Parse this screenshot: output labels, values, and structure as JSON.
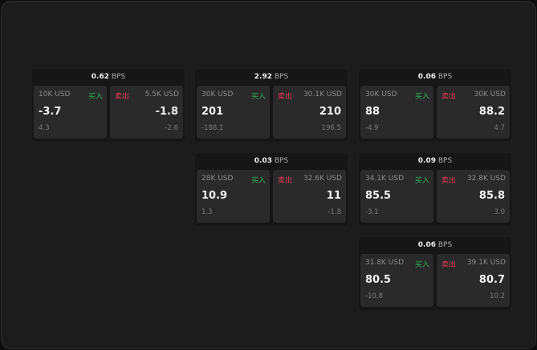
{
  "unit": "BPS",
  "buy_label": "买入",
  "sell_label": "卖出",
  "colors": {
    "buy": "#2fae5b",
    "sell": "#e0395a",
    "background": "#1c1c1c",
    "panel": "#2a2a2a"
  },
  "cards": [
    {
      "spread": "0.62",
      "buy": {
        "size": "10K USD",
        "price": "-3.7",
        "change": "4.3"
      },
      "sell": {
        "size": "5.5K USD",
        "price": "-1.8",
        "change": "-2.6"
      }
    },
    {
      "spread": "2.92",
      "buy": {
        "size": "30K USD",
        "price": "201",
        "change": "-188.1"
      },
      "sell": {
        "size": "30.1K USD",
        "price": "210",
        "change": "196.5"
      }
    },
    {
      "spread": "0.06",
      "buy": {
        "size": "30K USD",
        "price": "88",
        "change": "-4.9"
      },
      "sell": {
        "size": "30K USD",
        "price": "88.2",
        "change": "4.7"
      }
    },
    {
      "spread": "0.03",
      "buy": {
        "size": "28K USD",
        "price": "10.9",
        "change": "1.3"
      },
      "sell": {
        "size": "32.6K USD",
        "price": "11",
        "change": "-1.8"
      }
    },
    {
      "spread": "0.09",
      "buy": {
        "size": "34.1K USD",
        "price": "85.5",
        "change": "-3.1"
      },
      "sell": {
        "size": "32.8K USD",
        "price": "85.8",
        "change": "3.0"
      }
    },
    {
      "spread": "0.06",
      "buy": {
        "size": "31.8K USD",
        "price": "80.5",
        "change": "-10.8"
      },
      "sell": {
        "size": "39.1K USD",
        "price": "80.7",
        "change": "10.2"
      }
    }
  ]
}
